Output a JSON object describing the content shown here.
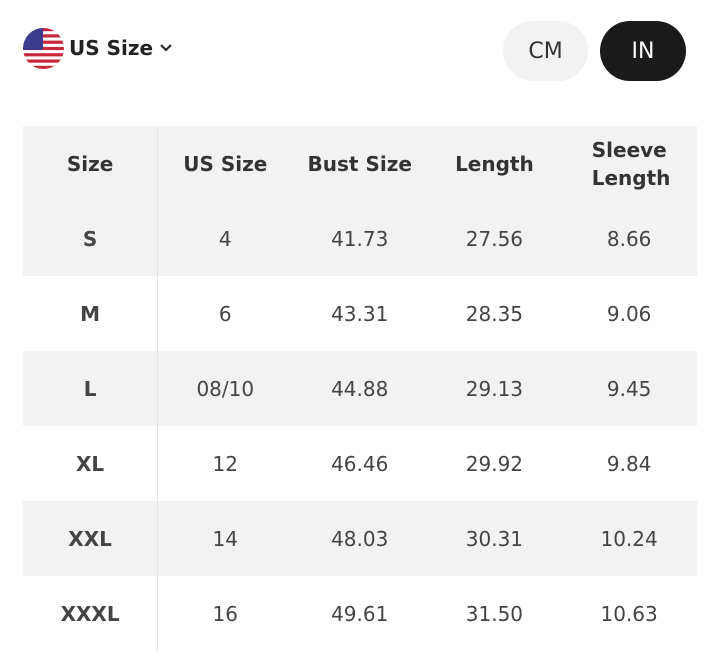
{
  "size_selector": {
    "label": "US Size"
  },
  "unit_toggle": {
    "options": [
      "CM",
      "IN"
    ],
    "selected": "IN"
  },
  "table": {
    "header": [
      "Size",
      "US Size",
      "Bust Size",
      "Length",
      "Sleeve Length"
    ],
    "rows": [
      [
        "S",
        "4",
        "41.73",
        "27.56",
        "8.66"
      ],
      [
        "M",
        "6",
        "43.31",
        "28.35",
        "9.06"
      ],
      [
        "L",
        "08/10",
        "44.88",
        "29.13",
        "9.45"
      ],
      [
        "XL",
        "12",
        "46.46",
        "29.92",
        "9.84"
      ],
      [
        "XXL",
        "14",
        "48.03",
        "30.31",
        "10.24"
      ],
      [
        "XXXL",
        "16",
        "49.61",
        "31.50",
        "10.63"
      ]
    ]
  }
}
